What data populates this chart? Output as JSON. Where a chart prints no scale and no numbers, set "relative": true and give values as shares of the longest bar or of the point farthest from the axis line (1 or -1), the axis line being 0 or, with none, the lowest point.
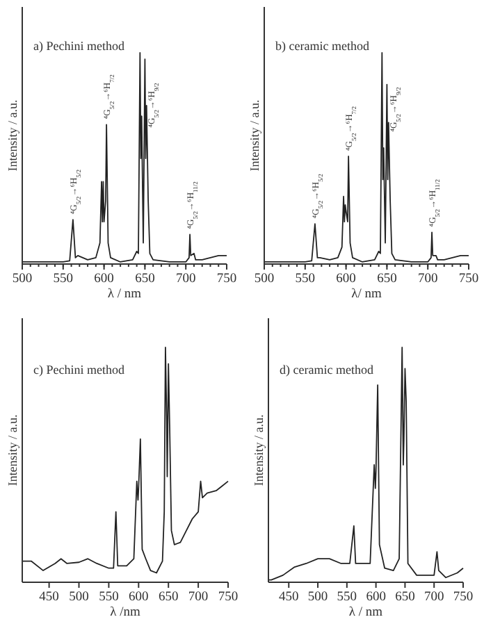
{
  "chart_data": [
    {
      "type": "line",
      "title": "a) Pechini method",
      "xlabel": "λ / nm",
      "ylabel": "Intensity / a.u.",
      "relative": true,
      "xlim": [
        500,
        750
      ],
      "xticks": [
        500,
        550,
        600,
        650,
        700,
        750
      ],
      "x": [
        500,
        530,
        550,
        558,
        562,
        565,
        568,
        580,
        590,
        595,
        597,
        598,
        599,
        600,
        602,
        603,
        605,
        608,
        620,
        635,
        640,
        642,
        644,
        645,
        646,
        648,
        650,
        651,
        652,
        654,
        656,
        660,
        680,
        700,
        704,
        705,
        706,
        710,
        712,
        720,
        730,
        740,
        750
      ],
      "series": [
        {
          "color": "#222222",
          "values": [
            0.01,
            0.01,
            0.01,
            0.015,
            0.21,
            0.03,
            0.04,
            0.02,
            0.03,
            0.1,
            0.39,
            0.2,
            0.39,
            0.2,
            0.3,
            0.66,
            0.1,
            0.03,
            0.01,
            0.02,
            0.06,
            0.05,
            1.0,
            0.5,
            0.7,
            0.1,
            0.97,
            0.5,
            0.75,
            0.3,
            0.05,
            0.02,
            0.01,
            0.01,
            0.03,
            0.14,
            0.04,
            0.05,
            0.02,
            0.02,
            0.03,
            0.04,
            0.04
          ]
        }
      ],
      "annotations": [
        {
          "text": "⁴G$_{5/2}$→⁶H$_{5/2}$",
          "x": 562,
          "y": 0.21
        },
        {
          "text": "⁴G$_{5/2}$→⁶H$_{7/2}$",
          "x": 603,
          "y": 0.66
        },
        {
          "text": "⁴G$_{5/2}$→⁶H$_{9/2}$",
          "x": 657,
          "y": 0.62
        },
        {
          "text": "⁴G$_{5/2}$→⁶H$_{11/2}$",
          "x": 705,
          "y": 0.14
        }
      ]
    },
    {
      "type": "line",
      "title": "b) ceramic method",
      "xlabel": "λ/ nm",
      "ylabel": "Intensity / a.u.",
      "relative": true,
      "xlim": [
        500,
        750
      ],
      "xticks": [
        500,
        550,
        600,
        650,
        700,
        750
      ],
      "x": [
        500,
        530,
        550,
        558,
        562,
        565,
        568,
        580,
        590,
        595,
        597,
        598,
        599,
        600,
        602,
        603,
        605,
        608,
        620,
        635,
        640,
        642,
        644,
        645,
        646,
        648,
        650,
        651,
        652,
        654,
        656,
        660,
        680,
        700,
        704,
        705,
        706,
        710,
        712,
        720,
        730,
        740,
        750
      ],
      "series": [
        {
          "color": "#222222",
          "values": [
            0.01,
            0.01,
            0.01,
            0.015,
            0.19,
            0.03,
            0.03,
            0.02,
            0.03,
            0.08,
            0.32,
            0.2,
            0.28,
            0.25,
            0.2,
            0.51,
            0.1,
            0.03,
            0.01,
            0.02,
            0.06,
            0.05,
            1.0,
            0.4,
            0.55,
            0.1,
            0.85,
            0.4,
            0.67,
            0.3,
            0.05,
            0.02,
            0.01,
            0.01,
            0.03,
            0.15,
            0.04,
            0.04,
            0.02,
            0.02,
            0.03,
            0.04,
            0.04
          ]
        }
      ],
      "annotations": [
        {
          "text": "⁴G$_{5/2}$→⁶H$_{5/2}$",
          "x": 562,
          "y": 0.19
        },
        {
          "text": "⁴G$_{5/2}$→⁶H$_{7/2}$",
          "x": 603,
          "y": 0.51
        },
        {
          "text": "⁴G$_{5/2}$→⁶H$_{9/2}$",
          "x": 657,
          "y": 0.6
        },
        {
          "text": "⁴G$_{5/2}$→⁶H$_{11/2}$",
          "x": 705,
          "y": 0.15
        }
      ]
    },
    {
      "type": "line",
      "title": "c) Pechini method",
      "xlabel": "λ /nm",
      "ylabel": "Intensity / a.u.",
      "relative": true,
      "xlim": [
        405,
        750
      ],
      "xticks": [
        450,
        500,
        550,
        600,
        650,
        700,
        750
      ],
      "x": [
        405,
        420,
        440,
        460,
        470,
        480,
        500,
        515,
        530,
        550,
        558,
        562,
        565,
        580,
        592,
        597,
        599,
        600,
        603,
        606,
        612,
        620,
        630,
        640,
        643,
        645,
        647,
        648,
        650,
        652,
        655,
        660,
        670,
        680,
        690,
        700,
        704,
        707,
        715,
        730,
        740,
        750
      ],
      "series": [
        {
          "color": "#222222",
          "values": [
            0.09,
            0.09,
            0.05,
            0.08,
            0.1,
            0.08,
            0.085,
            0.1,
            0.08,
            0.06,
            0.06,
            0.3,
            0.07,
            0.07,
            0.1,
            0.43,
            0.35,
            0.4,
            0.61,
            0.14,
            0.1,
            0.05,
            0.04,
            0.09,
            0.3,
            1.0,
            0.7,
            0.45,
            0.93,
            0.67,
            0.22,
            0.16,
            0.17,
            0.22,
            0.27,
            0.3,
            0.43,
            0.36,
            0.38,
            0.39,
            0.41,
            0.43
          ]
        }
      ]
    },
    {
      "type": "line",
      "title": "d) ceramic method",
      "xlabel": "λ / nm",
      "ylabel": "Intensity / a.u.",
      "relative": true,
      "xlim": [
        415,
        750
      ],
      "xticks": [
        450,
        500,
        550,
        600,
        650,
        700,
        750
      ],
      "x": [
        415,
        420,
        440,
        460,
        480,
        500,
        520,
        540,
        555,
        562,
        565,
        590,
        597,
        599,
        600,
        603,
        606,
        615,
        630,
        640,
        645,
        647,
        648,
        650,
        652,
        655,
        670,
        700,
        705,
        708,
        720,
        740,
        750
      ],
      "series": [
        {
          "color": "#222222",
          "values": [
            0.01,
            0.01,
            0.03,
            0.065,
            0.08,
            0.1,
            0.1,
            0.08,
            0.08,
            0.24,
            0.08,
            0.08,
            0.5,
            0.4,
            0.47,
            0.84,
            0.16,
            0.06,
            0.05,
            0.1,
            1.0,
            0.5,
            0.6,
            0.91,
            0.77,
            0.08,
            0.03,
            0.03,
            0.13,
            0.05,
            0.02,
            0.04,
            0.06
          ]
        }
      ]
    }
  ]
}
